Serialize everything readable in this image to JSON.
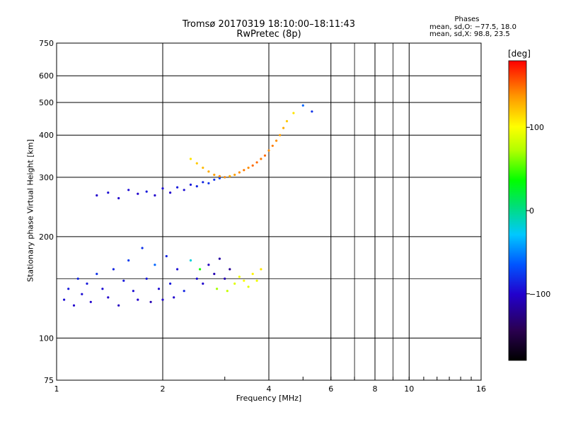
{
  "header": {
    "title": "Tromsø 20170319 18:10:00–18:11:43",
    "subtitle": "RwPretec (8p)"
  },
  "phase_info": {
    "title": "Phases",
    "line1": "mean, sd,O: −77.5, 18.0",
    "line2": "mean, sd,X:  98.8, 23.5"
  },
  "colorbar": {
    "title": "[deg]",
    "range": [
      -180,
      180
    ],
    "tick_values": [
      100,
      0,
      -100
    ],
    "tick_labels": [
      "100",
      "0",
      "−100"
    ]
  },
  "chart_data": {
    "type": "scatter",
    "title": "Tromsø 20170319 18:10:00–18:11:43",
    "subtitle": "RwPretec (8p)",
    "xlabel": "Frequency [MHz]",
    "ylabel": "Stationary phase Virtual Height [km]",
    "x_scale": "log",
    "y_scale": "log",
    "xlim": [
      1,
      16
    ],
    "ylim": [
      75,
      750
    ],
    "x_ticks": [
      1,
      2,
      4,
      6,
      8,
      10,
      16
    ],
    "x_tick_labels": [
      "1",
      "2",
      "4",
      "6",
      "8",
      "10",
      "16"
    ],
    "y_ticks": [
      75,
      100,
      200,
      300,
      400,
      500,
      600,
      750
    ],
    "y_tick_labels": [
      "75",
      "100",
      "200",
      "300",
      "400",
      "500",
      "600",
      "750"
    ],
    "grid": true,
    "color_variable": "phase [deg]",
    "points": [
      [
        1.05,
        130,
        -95
      ],
      [
        1.08,
        140,
        -90
      ],
      [
        1.12,
        125,
        -100
      ],
      [
        1.15,
        150,
        -85
      ],
      [
        1.18,
        135,
        -95
      ],
      [
        1.22,
        145,
        -90
      ],
      [
        1.25,
        128,
        -100
      ],
      [
        1.3,
        155,
        -80
      ],
      [
        1.35,
        140,
        -95
      ],
      [
        1.4,
        132,
        -100
      ],
      [
        1.45,
        160,
        -85
      ],
      [
        1.5,
        125,
        -105
      ],
      [
        1.55,
        148,
        -90
      ],
      [
        1.6,
        170,
        -75
      ],
      [
        1.65,
        138,
        -95
      ],
      [
        1.7,
        130,
        -100
      ],
      [
        1.75,
        185,
        -80
      ],
      [
        1.8,
        150,
        -90
      ],
      [
        1.85,
        128,
        -110
      ],
      [
        1.9,
        165,
        -60
      ],
      [
        1.95,
        140,
        -95
      ],
      [
        2.0,
        130,
        -100
      ],
      [
        2.05,
        175,
        -85
      ],
      [
        2.1,
        145,
        -90
      ],
      [
        2.15,
        132,
        -100
      ],
      [
        2.2,
        160,
        -95
      ],
      [
        2.3,
        138,
        -85
      ],
      [
        2.4,
        170,
        -20
      ],
      [
        2.5,
        150,
        -95
      ],
      [
        2.55,
        160,
        40
      ],
      [
        2.6,
        145,
        -100
      ],
      [
        2.7,
        165,
        -105
      ],
      [
        2.8,
        155,
        -110
      ],
      [
        2.85,
        140,
        70
      ],
      [
        2.9,
        172,
        -115
      ],
      [
        3.0,
        150,
        -110
      ],
      [
        3.05,
        138,
        80
      ],
      [
        3.1,
        160,
        -120
      ],
      [
        3.2,
        145,
        90
      ],
      [
        3.3,
        152,
        95
      ],
      [
        3.4,
        148,
        100
      ],
      [
        3.5,
        142,
        90
      ],
      [
        3.6,
        155,
        105
      ],
      [
        3.7,
        148,
        95
      ],
      [
        3.8,
        160,
        110
      ],
      [
        1.3,
        265,
        -100
      ],
      [
        1.4,
        270,
        -95
      ],
      [
        1.5,
        260,
        -100
      ],
      [
        1.6,
        275,
        -95
      ],
      [
        1.7,
        268,
        -100
      ],
      [
        1.8,
        272,
        -90
      ],
      [
        1.9,
        265,
        -100
      ],
      [
        2.0,
        278,
        -95
      ],
      [
        2.1,
        270,
        -100
      ],
      [
        2.2,
        280,
        -90
      ],
      [
        2.3,
        275,
        -95
      ],
      [
        2.4,
        285,
        -90
      ],
      [
        2.5,
        282,
        -85
      ],
      [
        2.6,
        290,
        -85
      ],
      [
        2.7,
        288,
        -80
      ],
      [
        2.8,
        295,
        -80
      ],
      [
        2.9,
        298,
        -75
      ],
      [
        3.0,
        300,
        -70
      ],
      [
        2.4,
        340,
        110
      ],
      [
        2.5,
        330,
        120
      ],
      [
        2.6,
        320,
        125
      ],
      [
        2.7,
        312,
        130
      ],
      [
        2.8,
        305,
        135
      ],
      [
        2.9,
        302,
        140
      ],
      [
        3.0,
        300,
        140
      ],
      [
        3.1,
        302,
        130
      ],
      [
        3.2,
        305,
        135
      ],
      [
        3.3,
        310,
        140
      ],
      [
        3.4,
        315,
        145
      ],
      [
        3.5,
        320,
        140
      ],
      [
        3.6,
        325,
        150
      ],
      [
        3.7,
        332,
        150
      ],
      [
        3.8,
        340,
        145
      ],
      [
        3.9,
        348,
        150
      ],
      [
        4.0,
        360,
        140
      ],
      [
        4.1,
        372,
        145
      ],
      [
        4.2,
        385,
        140
      ],
      [
        4.3,
        400,
        135
      ],
      [
        4.4,
        420,
        130
      ],
      [
        4.5,
        440,
        120
      ],
      [
        4.7,
        465,
        110
      ],
      [
        5.0,
        490,
        -60
      ],
      [
        5.3,
        470,
        -80
      ]
    ]
  }
}
